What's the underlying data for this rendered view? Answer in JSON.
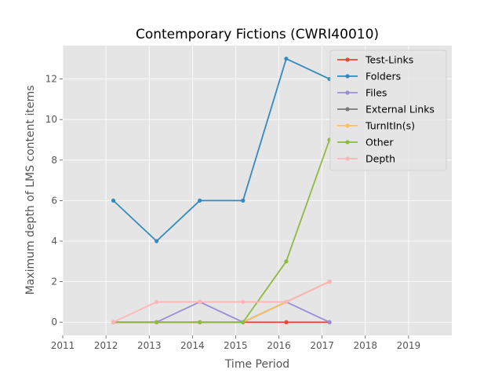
{
  "chart_data": {
    "type": "line",
    "title": "Contemporary Fictions (CWRI40010)",
    "xlabel": "Time Period",
    "ylabel": "Maximum depth of LMS content items",
    "xlim": [
      2011,
      2020
    ],
    "ylim": [
      -0.65,
      13.65
    ],
    "xticks": [
      2011,
      2012,
      2013,
      2014,
      2015,
      2016,
      2017,
      2018,
      2019
    ],
    "yticks": [
      0,
      2,
      4,
      6,
      8,
      10,
      12
    ],
    "grid": true,
    "legend_position": "top-right",
    "x": [
      2012.17,
      2013.17,
      2014.17,
      2015.17,
      2016.17,
      2017.17
    ],
    "series": [
      {
        "name": "Test-Links",
        "color": "#E24A33",
        "values": [
          0,
          0,
          0,
          0,
          0,
          0
        ]
      },
      {
        "name": "Folders",
        "color": "#348ABD",
        "values": [
          6,
          4,
          6,
          6,
          13,
          12
        ]
      },
      {
        "name": "Files",
        "color": "#988ED5",
        "values": [
          0,
          0,
          1,
          0,
          1,
          0
        ]
      },
      {
        "name": "External Links",
        "color": "#777777",
        "values": [
          0,
          0,
          0,
          0,
          1,
          2
        ]
      },
      {
        "name": "TurnItIn(s)",
        "color": "#FBC15E",
        "values": [
          0,
          0,
          0,
          0,
          1,
          2
        ]
      },
      {
        "name": "Other",
        "color": "#8EBA42",
        "values": [
          0,
          0,
          0,
          0,
          3,
          9
        ]
      },
      {
        "name": "Depth",
        "color": "#FFB5B8",
        "values": [
          0,
          1,
          1,
          1,
          1,
          2
        ]
      }
    ]
  }
}
